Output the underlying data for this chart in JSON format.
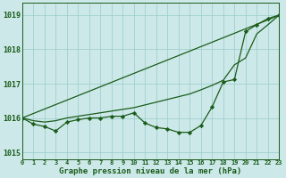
{
  "xlabel": "Graphe pression niveau de la mer (hPa)",
  "hours": [
    0,
    1,
    2,
    3,
    4,
    5,
    6,
    7,
    8,
    9,
    10,
    11,
    12,
    13,
    14,
    15,
    16,
    17,
    18,
    19,
    20,
    21,
    22,
    23
  ],
  "line_straight": [
    1016.0,
    1016.13,
    1016.26,
    1016.39,
    1016.52,
    1016.65,
    1016.78,
    1016.91,
    1017.04,
    1017.17,
    1017.3,
    1017.43,
    1017.56,
    1017.69,
    1017.82,
    1017.95,
    1018.08,
    1018.21,
    1018.34,
    1018.47,
    1018.6,
    1018.73,
    1018.86,
    1019.0
  ],
  "line_middle": [
    1016.0,
    1015.92,
    1015.88,
    1015.92,
    1016.0,
    1016.05,
    1016.1,
    1016.15,
    1016.2,
    1016.25,
    1016.3,
    1016.38,
    1016.46,
    1016.54,
    1016.62,
    1016.7,
    1016.82,
    1016.95,
    1017.1,
    1017.55,
    1017.75,
    1018.45,
    1018.72,
    1019.0
  ],
  "line_zigzag": [
    1016.0,
    1015.82,
    1015.75,
    1015.62,
    1015.88,
    1015.95,
    1016.0,
    1016.0,
    1016.05,
    1016.05,
    1016.15,
    1015.85,
    1015.72,
    1015.68,
    1015.58,
    1015.58,
    1015.78,
    1016.32,
    1017.05,
    1017.12,
    1018.52,
    1018.72,
    1018.9,
    1019.0
  ],
  "line_color": "#1a5c1a",
  "bg_color": "#cce8e8",
  "grid_color": "#99cccc",
  "yticks": [
    1015,
    1016,
    1017,
    1018,
    1019
  ],
  "ylim": [
    1014.8,
    1019.35
  ],
  "xlim": [
    0,
    23
  ]
}
